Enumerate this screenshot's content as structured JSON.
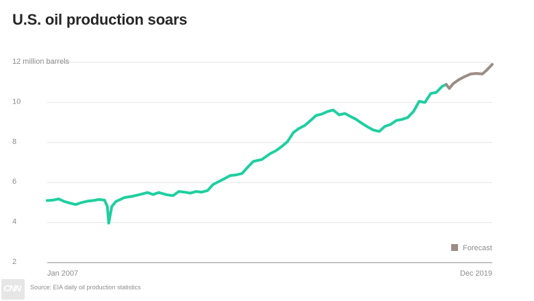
{
  "title": "U.S. oil production soars",
  "source": "Source: EIA daily oil production statistics",
  "logo_text": "CNN",
  "colors": {
    "actual": "#1fcfa0",
    "forecast": "#9b8c84",
    "grid": "#e4e4e4",
    "axis": "#888888"
  },
  "chart_data": {
    "type": "line",
    "title": "U.S. oil production soars",
    "ylabel": "",
    "ylim": [
      2,
      12
    ],
    "y_ticks": [
      2,
      4,
      6,
      8,
      10,
      12
    ],
    "y_tick_labels": [
      "2",
      "4",
      "6",
      "8",
      "10",
      "12 million barrels"
    ],
    "x_ticks": [
      "Jan 2007",
      "Dec 2019"
    ],
    "x_range": [
      2007.0,
      2019.96
    ],
    "legend": {
      "label": "Forecast",
      "position": "bottom-right"
    },
    "grid": true,
    "series": [
      {
        "kind": "actual",
        "points": [
          [
            2007.0,
            5.1
          ],
          [
            2007.17,
            5.12
          ],
          [
            2007.33,
            5.18
          ],
          [
            2007.5,
            5.05
          ],
          [
            2007.67,
            4.97
          ],
          [
            2007.83,
            4.9
          ],
          [
            2008.0,
            5.0
          ],
          [
            2008.17,
            5.07
          ],
          [
            2008.33,
            5.1
          ],
          [
            2008.5,
            5.15
          ],
          [
            2008.67,
            5.12
          ],
          [
            2008.75,
            4.8
          ],
          [
            2008.79,
            3.97
          ],
          [
            2008.88,
            4.8
          ],
          [
            2009.0,
            5.05
          ],
          [
            2009.25,
            5.25
          ],
          [
            2009.5,
            5.32
          ],
          [
            2009.75,
            5.42
          ],
          [
            2009.92,
            5.5
          ],
          [
            2010.08,
            5.4
          ],
          [
            2010.25,
            5.5
          ],
          [
            2010.5,
            5.38
          ],
          [
            2010.67,
            5.35
          ],
          [
            2010.83,
            5.55
          ],
          [
            2011.0,
            5.52
          ],
          [
            2011.17,
            5.47
          ],
          [
            2011.33,
            5.55
          ],
          [
            2011.5,
            5.52
          ],
          [
            2011.67,
            5.6
          ],
          [
            2011.83,
            5.9
          ],
          [
            2012.0,
            6.05
          ],
          [
            2012.17,
            6.2
          ],
          [
            2012.33,
            6.35
          ],
          [
            2012.5,
            6.38
          ],
          [
            2012.67,
            6.45
          ],
          [
            2012.83,
            6.75
          ],
          [
            2013.0,
            7.05
          ],
          [
            2013.25,
            7.15
          ],
          [
            2013.5,
            7.45
          ],
          [
            2013.67,
            7.6
          ],
          [
            2013.83,
            7.8
          ],
          [
            2014.0,
            8.05
          ],
          [
            2014.17,
            8.5
          ],
          [
            2014.33,
            8.7
          ],
          [
            2014.5,
            8.85
          ],
          [
            2014.67,
            9.1
          ],
          [
            2014.83,
            9.35
          ],
          [
            2015.0,
            9.42
          ],
          [
            2015.17,
            9.55
          ],
          [
            2015.33,
            9.62
          ],
          [
            2015.5,
            9.38
          ],
          [
            2015.67,
            9.45
          ],
          [
            2015.83,
            9.3
          ],
          [
            2016.0,
            9.15
          ],
          [
            2016.17,
            8.95
          ],
          [
            2016.33,
            8.78
          ],
          [
            2016.5,
            8.62
          ],
          [
            2016.67,
            8.55
          ],
          [
            2016.83,
            8.8
          ],
          [
            2017.0,
            8.9
          ],
          [
            2017.17,
            9.1
          ],
          [
            2017.33,
            9.15
          ],
          [
            2017.5,
            9.25
          ],
          [
            2017.67,
            9.55
          ],
          [
            2017.83,
            10.05
          ],
          [
            2018.0,
            10.0
          ],
          [
            2018.17,
            10.45
          ],
          [
            2018.33,
            10.5
          ],
          [
            2018.5,
            10.8
          ],
          [
            2018.62,
            10.9
          ]
        ]
      },
      {
        "kind": "forecast",
        "name": "Forecast",
        "points": [
          [
            2018.62,
            10.9
          ],
          [
            2018.71,
            10.7
          ],
          [
            2018.83,
            10.95
          ],
          [
            2019.0,
            11.15
          ],
          [
            2019.17,
            11.3
          ],
          [
            2019.33,
            11.42
          ],
          [
            2019.5,
            11.45
          ],
          [
            2019.67,
            11.42
          ],
          [
            2019.79,
            11.6
          ],
          [
            2019.96,
            11.9
          ]
        ]
      }
    ]
  }
}
